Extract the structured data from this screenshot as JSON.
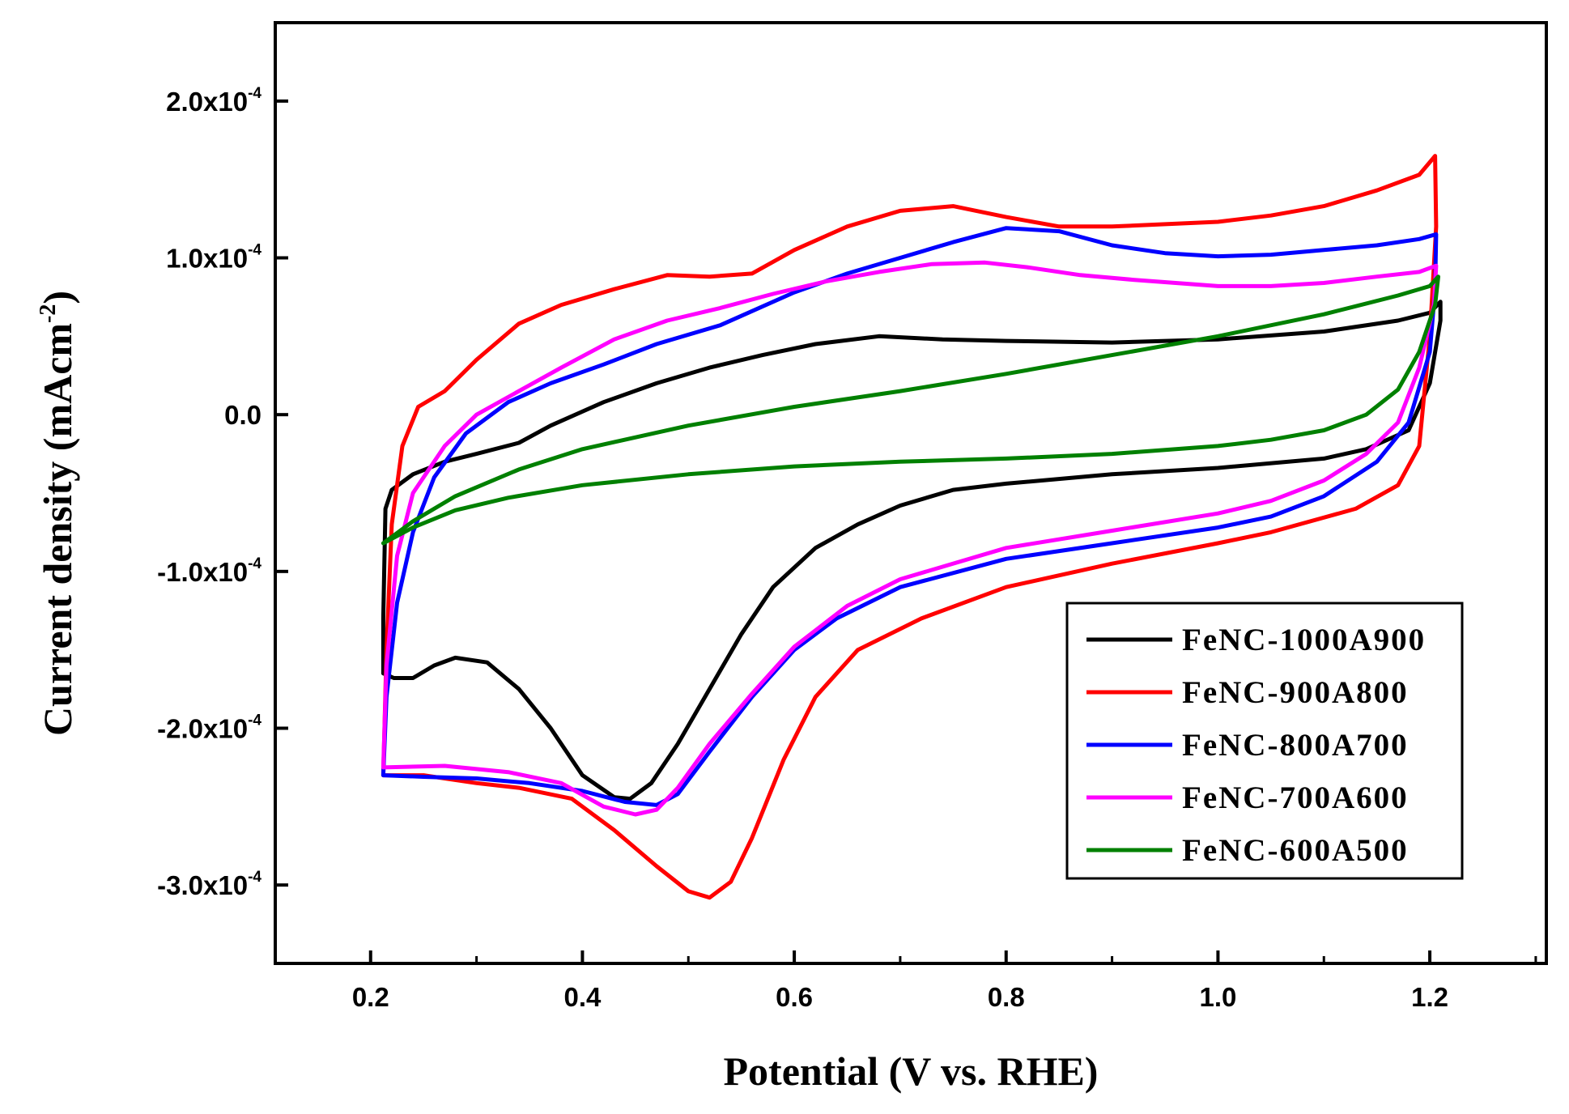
{
  "chart_data": {
    "type": "line",
    "title": "",
    "xlabel": "Potential (V vs. RHE)",
    "ylabel_main": "Current density (mAcm",
    "ylabel_sup": "-2",
    "ylabel_close": ")",
    "xlim": [
      0.11,
      1.31
    ],
    "ylim": [
      -0.00035,
      0.00025
    ],
    "x_ticks": [
      0.2,
      0.4,
      0.6,
      0.8,
      1.0,
      1.2
    ],
    "x_tick_labels": [
      "0.2",
      "0.4",
      "0.6",
      "0.8",
      "1.0",
      "1.2"
    ],
    "y_ticks": [
      {
        "value": 0.0002,
        "mant": "2.0x10",
        "exp": "-4"
      },
      {
        "value": 0.0001,
        "mant": "1.0x10",
        "exp": "-4"
      },
      {
        "value": 0.0,
        "mant": "0.0",
        "exp": ""
      },
      {
        "value": -0.0001,
        "mant": "-1.0x10",
        "exp": "-4"
      },
      {
        "value": -0.0002,
        "mant": "-2.0x10",
        "exp": "-4"
      },
      {
        "value": -0.0003,
        "mant": "-3.0x10",
        "exp": "-4"
      }
    ],
    "legend_position": "lower-right",
    "series": [
      {
        "name": "FeNC-1000A900",
        "color": "#000000",
        "points": [
          [
            0.212,
            -0.000165
          ],
          [
            0.212,
            -0.00013
          ],
          [
            0.214,
            -6e-05
          ],
          [
            0.22,
            -4.8e-05
          ],
          [
            0.24,
            -3.8e-05
          ],
          [
            0.27,
            -3e-05
          ],
          [
            0.3,
            -2.5e-05
          ],
          [
            0.34,
            -1.8e-05
          ],
          [
            0.37,
            -7e-06
          ],
          [
            0.42,
            8e-06
          ],
          [
            0.47,
            2e-05
          ],
          [
            0.52,
            3e-05
          ],
          [
            0.57,
            3.8e-05
          ],
          [
            0.62,
            4.5e-05
          ],
          [
            0.68,
            5e-05
          ],
          [
            0.74,
            4.8e-05
          ],
          [
            0.8,
            4.7e-05
          ],
          [
            0.9,
            4.6e-05
          ],
          [
            1.0,
            4.8e-05
          ],
          [
            1.1,
            5.3e-05
          ],
          [
            1.17,
            6e-05
          ],
          [
            1.2,
            6.5e-05
          ],
          [
            1.21,
            7.2e-05
          ],
          [
            1.21,
            6e-05
          ],
          [
            1.2,
            2e-05
          ],
          [
            1.18,
            -1e-05
          ],
          [
            1.14,
            -2.2e-05
          ],
          [
            1.1,
            -2.8e-05
          ],
          [
            1.0,
            -3.4e-05
          ],
          [
            0.9,
            -3.8e-05
          ],
          [
            0.8,
            -4.4e-05
          ],
          [
            0.75,
            -4.8e-05
          ],
          [
            0.7,
            -5.8e-05
          ],
          [
            0.66,
            -7e-05
          ],
          [
            0.62,
            -8.5e-05
          ],
          [
            0.58,
            -0.00011
          ],
          [
            0.55,
            -0.00014
          ],
          [
            0.52,
            -0.000175
          ],
          [
            0.49,
            -0.00021
          ],
          [
            0.465,
            -0.000235
          ],
          [
            0.445,
            -0.000245
          ],
          [
            0.43,
            -0.000244
          ],
          [
            0.4,
            -0.00023
          ],
          [
            0.37,
            -0.0002
          ],
          [
            0.34,
            -0.000175
          ],
          [
            0.31,
            -0.000158
          ],
          [
            0.28,
            -0.000155
          ],
          [
            0.26,
            -0.00016
          ],
          [
            0.24,
            -0.000168
          ],
          [
            0.222,
            -0.000168
          ],
          [
            0.212,
            -0.000165
          ]
        ]
      },
      {
        "name": "FeNC-900A800",
        "color": "#ff0000",
        "points": [
          [
            0.212,
            -0.00023
          ],
          [
            0.215,
            -0.00015
          ],
          [
            0.22,
            -7e-05
          ],
          [
            0.23,
            -2e-05
          ],
          [
            0.245,
            5e-06
          ],
          [
            0.27,
            1.5e-05
          ],
          [
            0.3,
            3.5e-05
          ],
          [
            0.34,
            5.8e-05
          ],
          [
            0.38,
            7e-05
          ],
          [
            0.43,
            8e-05
          ],
          [
            0.48,
            8.9e-05
          ],
          [
            0.52,
            8.8e-05
          ],
          [
            0.56,
            9e-05
          ],
          [
            0.6,
            0.000105
          ],
          [
            0.65,
            0.00012
          ],
          [
            0.7,
            0.00013
          ],
          [
            0.75,
            0.000133
          ],
          [
            0.8,
            0.000126
          ],
          [
            0.85,
            0.00012
          ],
          [
            0.9,
            0.00012
          ],
          [
            1.0,
            0.000123
          ],
          [
            1.05,
            0.000127
          ],
          [
            1.1,
            0.000133
          ],
          [
            1.15,
            0.000143
          ],
          [
            1.19,
            0.000153
          ],
          [
            1.205,
            0.000165
          ],
          [
            1.206,
            0.00012
          ],
          [
            1.2,
            5e-05
          ],
          [
            1.19,
            -2e-05
          ],
          [
            1.17,
            -4.5e-05
          ],
          [
            1.13,
            -6e-05
          ],
          [
            1.05,
            -7.5e-05
          ],
          [
            1.0,
            -8.2e-05
          ],
          [
            0.9,
            -9.5e-05
          ],
          [
            0.8,
            -0.00011
          ],
          [
            0.72,
            -0.00013
          ],
          [
            0.66,
            -0.00015
          ],
          [
            0.62,
            -0.00018
          ],
          [
            0.59,
            -0.00022
          ],
          [
            0.56,
            -0.00027
          ],
          [
            0.54,
            -0.000298
          ],
          [
            0.52,
            -0.000308
          ],
          [
            0.5,
            -0.000304
          ],
          [
            0.47,
            -0.000288
          ],
          [
            0.43,
            -0.000265
          ],
          [
            0.39,
            -0.000245
          ],
          [
            0.34,
            -0.000238
          ],
          [
            0.3,
            -0.000235
          ],
          [
            0.25,
            -0.00023
          ],
          [
            0.212,
            -0.00023
          ]
        ]
      },
      {
        "name": "FeNC-800A700",
        "color": "#0000ff",
        "points": [
          [
            0.212,
            -0.00023
          ],
          [
            0.215,
            -0.00018
          ],
          [
            0.225,
            -0.00012
          ],
          [
            0.24,
            -7.5e-05
          ],
          [
            0.26,
            -4e-05
          ],
          [
            0.29,
            -1.2e-05
          ],
          [
            0.33,
            8e-06
          ],
          [
            0.37,
            2e-05
          ],
          [
            0.42,
            3.2e-05
          ],
          [
            0.47,
            4.5e-05
          ],
          [
            0.53,
            5.7e-05
          ],
          [
            0.6,
            7.8e-05
          ],
          [
            0.65,
            9e-05
          ],
          [
            0.7,
            0.0001
          ],
          [
            0.75,
            0.00011
          ],
          [
            0.8,
            0.000119
          ],
          [
            0.85,
            0.000117
          ],
          [
            0.9,
            0.000108
          ],
          [
            0.95,
            0.000103
          ],
          [
            1.0,
            0.000101
          ],
          [
            1.05,
            0.000102
          ],
          [
            1.1,
            0.000105
          ],
          [
            1.15,
            0.000108
          ],
          [
            1.19,
            0.000112
          ],
          [
            1.206,
            0.000115
          ],
          [
            1.205,
            8e-05
          ],
          [
            1.2,
            4e-05
          ],
          [
            1.18,
            -5e-06
          ],
          [
            1.15,
            -3e-05
          ],
          [
            1.1,
            -5.2e-05
          ],
          [
            1.05,
            -6.5e-05
          ],
          [
            1.0,
            -7.2e-05
          ],
          [
            0.9,
            -8.2e-05
          ],
          [
            0.8,
            -9.2e-05
          ],
          [
            0.7,
            -0.00011
          ],
          [
            0.64,
            -0.00013
          ],
          [
            0.6,
            -0.00015
          ],
          [
            0.56,
            -0.00018
          ],
          [
            0.52,
            -0.000215
          ],
          [
            0.49,
            -0.000242
          ],
          [
            0.47,
            -0.000249
          ],
          [
            0.44,
            -0.000247
          ],
          [
            0.4,
            -0.00024
          ],
          [
            0.35,
            -0.000235
          ],
          [
            0.3,
            -0.000232
          ],
          [
            0.25,
            -0.000231
          ],
          [
            0.212,
            -0.00023
          ]
        ]
      },
      {
        "name": "FeNC-700A600",
        "color": "#ff00ff",
        "points": [
          [
            0.212,
            -0.000225
          ],
          [
            0.215,
            -0.00016
          ],
          [
            0.225,
            -9e-05
          ],
          [
            0.24,
            -5e-05
          ],
          [
            0.27,
            -2e-05
          ],
          [
            0.3,
            0.0
          ],
          [
            0.34,
            1.5e-05
          ],
          [
            0.38,
            3e-05
          ],
          [
            0.43,
            4.8e-05
          ],
          [
            0.48,
            6e-05
          ],
          [
            0.53,
            6.8e-05
          ],
          [
            0.58,
            7.7e-05
          ],
          [
            0.63,
            8.5e-05
          ],
          [
            0.68,
            9.1e-05
          ],
          [
            0.73,
            9.6e-05
          ],
          [
            0.78,
            9.7e-05
          ],
          [
            0.82,
            9.4e-05
          ],
          [
            0.87,
            8.9e-05
          ],
          [
            0.92,
            8.6e-05
          ],
          [
            1.0,
            8.2e-05
          ],
          [
            1.05,
            8.2e-05
          ],
          [
            1.1,
            8.4e-05
          ],
          [
            1.15,
            8.8e-05
          ],
          [
            1.19,
            9.1e-05
          ],
          [
            1.206,
            9.5e-05
          ],
          [
            1.204,
            7e-05
          ],
          [
            1.19,
            3e-05
          ],
          [
            1.17,
            -5e-06
          ],
          [
            1.14,
            -2.5e-05
          ],
          [
            1.1,
            -4.2e-05
          ],
          [
            1.05,
            -5.5e-05
          ],
          [
            1.0,
            -6.3e-05
          ],
          [
            0.9,
            -7.4e-05
          ],
          [
            0.8,
            -8.5e-05
          ],
          [
            0.7,
            -0.000105
          ],
          [
            0.65,
            -0.000122
          ],
          [
            0.6,
            -0.000148
          ],
          [
            0.56,
            -0.000178
          ],
          [
            0.52,
            -0.00021
          ],
          [
            0.49,
            -0.000238
          ],
          [
            0.47,
            -0.000252
          ],
          [
            0.45,
            -0.000255
          ],
          [
            0.42,
            -0.00025
          ],
          [
            0.38,
            -0.000235
          ],
          [
            0.33,
            -0.000228
          ],
          [
            0.27,
            -0.000224
          ],
          [
            0.212,
            -0.000225
          ]
        ]
      },
      {
        "name": "FeNC-600A500",
        "color": "#008000",
        "points": [
          [
            0.212,
            -8.2e-05
          ],
          [
            0.24,
            -6.8e-05
          ],
          [
            0.28,
            -5.2e-05
          ],
          [
            0.34,
            -3.5e-05
          ],
          [
            0.4,
            -2.2e-05
          ],
          [
            0.5,
            -7e-06
          ],
          [
            0.6,
            5e-06
          ],
          [
            0.7,
            1.5e-05
          ],
          [
            0.8,
            2.6e-05
          ],
          [
            0.9,
            3.8e-05
          ],
          [
            1.0,
            5e-05
          ],
          [
            1.1,
            6.4e-05
          ],
          [
            1.17,
            7.6e-05
          ],
          [
            1.2,
            8.2e-05
          ],
          [
            1.208,
            8.8e-05
          ],
          [
            1.205,
            7e-05
          ],
          [
            1.19,
            4e-05
          ],
          [
            1.17,
            1.6e-05
          ],
          [
            1.14,
            0.0
          ],
          [
            1.1,
            -1e-05
          ],
          [
            1.05,
            -1.6e-05
          ],
          [
            1.0,
            -2e-05
          ],
          [
            0.9,
            -2.5e-05
          ],
          [
            0.8,
            -2.8e-05
          ],
          [
            0.7,
            -3e-05
          ],
          [
            0.6,
            -3.3e-05
          ],
          [
            0.5,
            -3.8e-05
          ],
          [
            0.4,
            -4.5e-05
          ],
          [
            0.33,
            -5.3e-05
          ],
          [
            0.28,
            -6.1e-05
          ],
          [
            0.24,
            -7.2e-05
          ],
          [
            0.212,
            -8.2e-05
          ]
        ]
      }
    ]
  }
}
